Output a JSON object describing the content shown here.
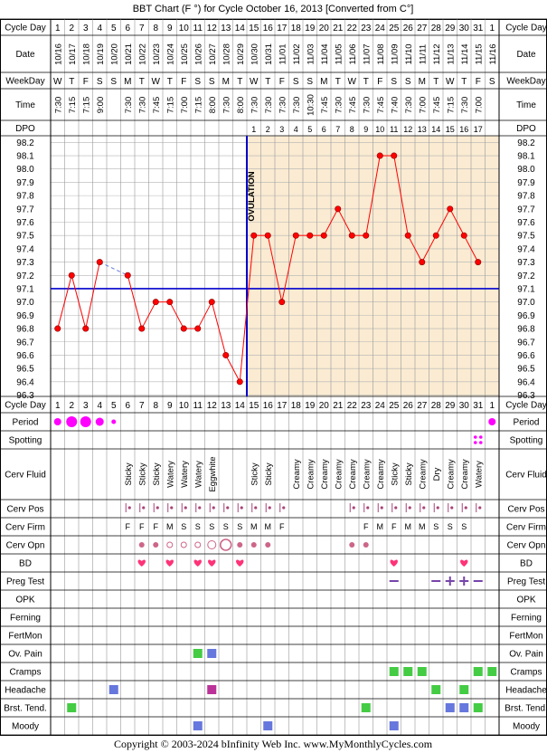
{
  "title": "BBT Chart (F °) for Cycle October 16, 2013  [Converted from C°]",
  "row_labels": {
    "cycle_day": "Cycle Day",
    "date": "Date",
    "weekday": "WeekDay",
    "time": "Time",
    "dpo": "DPO",
    "period": "Period",
    "spotting": "Spotting",
    "cerv_fluid": "Cerv Fluid",
    "cerv_pos": "Cerv Pos",
    "cerv_firm": "Cerv Firm",
    "cerv_opn": "Cerv Opn",
    "bd": "BD",
    "preg_test": "Preg Test",
    "opk": "OPK",
    "ferning": "Ferning",
    "fertmon": "FertMon",
    "ov_pain": "Ov. Pain",
    "cramps": "Cramps",
    "headache": "Headache",
    "brst_tend": "Brst. Tend.",
    "moody": "Moody"
  },
  "ovulation_label": "OVULATION",
  "footer": "Copyright © 2003-2024 bInfinity Web Inc.    www.MyMonthlyCycles.com",
  "colors": {
    "post_ovulation_bg": "#faebd2",
    "temp_line": "#ff0000",
    "coverline": "#0000cc",
    "period": "#ff00ff",
    "symptom_green": "#44cc44",
    "symptom_blue": "#6677dd",
    "headache_purple": "#bb3399",
    "heart": "#ff3377",
    "preg_neg": "#7744aa",
    "cerv_dot": "#cc6688"
  },
  "cycle_days": [
    "1",
    "2",
    "3",
    "4",
    "5",
    "6",
    "7",
    "8",
    "9",
    "10",
    "11",
    "12",
    "13",
    "14",
    "15",
    "16",
    "17",
    "18",
    "19",
    "20",
    "21",
    "22",
    "23",
    "24",
    "25",
    "26",
    "27",
    "28",
    "29",
    "30",
    "31",
    "1"
  ],
  "dates": [
    "10/16",
    "10/17",
    "10/18",
    "10/19",
    "10/20",
    "10/21",
    "10/22",
    "10/23",
    "10/24",
    "10/25",
    "10/26",
    "10/27",
    "10/28",
    "10/29",
    "10/30",
    "10/31",
    "11/01",
    "11/02",
    "11/03",
    "11/04",
    "11/05",
    "11/06",
    "11/07",
    "11/08",
    "11/09",
    "11/10",
    "11/11",
    "11/12",
    "11/13",
    "11/14",
    "11/15",
    "11/16"
  ],
  "weekdays": [
    "W",
    "T",
    "F",
    "S",
    "S",
    "M",
    "T",
    "W",
    "T",
    "F",
    "S",
    "S",
    "M",
    "T",
    "W",
    "T",
    "F",
    "S",
    "S",
    "M",
    "T",
    "W",
    "T",
    "F",
    "S",
    "S",
    "M",
    "T",
    "W",
    "T",
    "F",
    "S"
  ],
  "times": [
    "7:30",
    "7:15",
    "7:15",
    "9:00",
    "",
    "7:30",
    "7:30",
    "7:45",
    "7:15",
    "7:00",
    "7:15",
    "8:00",
    "7:30",
    "8:00",
    "7:30",
    "7:30",
    "7:30",
    "7:30",
    "10:30",
    "7:45",
    "7:30",
    "7:45",
    "7:30",
    "7:45",
    "7:40",
    "7:30",
    "7:00",
    "7:45",
    "7:15",
    "7:30",
    "7:00",
    ""
  ],
  "dpo": [
    "",
    "",
    "",
    "",
    "",
    "",
    "",
    "",
    "",
    "",
    "",
    "",
    "",
    "",
    "1",
    "2",
    "3",
    "4",
    "5",
    "6",
    "7",
    "8",
    "9",
    "10",
    "11",
    "12",
    "13",
    "14",
    "15",
    "16",
    "17",
    ""
  ],
  "cerv_fluid": [
    "",
    "",
    "",
    "",
    "",
    "Sticky",
    "Sticky",
    "Sticky",
    "Watery",
    "Watery",
    "Watery",
    "Eggwhite",
    "",
    "",
    "Sticky",
    "Sticky",
    "",
    "Creamy",
    "Creamy",
    "Creamy",
    "Creamy",
    "Creamy",
    "Creamy",
    "Creamy",
    "Sticky",
    "Sticky",
    "Creamy",
    "Dry",
    "Creamy",
    "Creamy",
    "Watery",
    ""
  ],
  "cerv_firm": [
    "",
    "",
    "",
    "",
    "",
    "F",
    "F",
    "F",
    "M",
    "S",
    "S",
    "S",
    "S",
    "S",
    "M",
    "M",
    "F",
    "",
    "",
    "",
    "",
    "",
    "F",
    "M",
    "F",
    "M",
    "M",
    "S",
    "S",
    "S",
    "",
    ""
  ],
  "cerv_pos": [
    0,
    0,
    0,
    0,
    0,
    1,
    1,
    1,
    1,
    1,
    1,
    1,
    1,
    1,
    1,
    1,
    1,
    0,
    0,
    0,
    0,
    1,
    1,
    1,
    1,
    1,
    1,
    1,
    1,
    1,
    1,
    0
  ],
  "cerv_opn": [
    "",
    "",
    "",
    "",
    "",
    "",
    "s",
    "s",
    "o",
    "o",
    "o",
    "l",
    "L",
    "s",
    "s",
    "s",
    "",
    "",
    "",
    "",
    "",
    "s",
    "s",
    "",
    "",
    "",
    "",
    "",
    "",
    "",
    "",
    ""
  ],
  "bd": [
    7,
    9,
    11,
    12,
    14,
    25,
    30
  ],
  "preg_test": {
    "neg": [
      25,
      28,
      31
    ],
    "pos": [
      29,
      30
    ]
  },
  "period": {
    "dots": [
      [
        1,
        "s"
      ],
      [
        2,
        "l"
      ],
      [
        3,
        "l"
      ],
      [
        4,
        "m"
      ],
      [
        5,
        "t"
      ],
      [
        32,
        "s"
      ]
    ]
  },
  "spotting": [
    31
  ],
  "ov_pain": [
    [
      11,
      "green"
    ],
    [
      12,
      "blue"
    ]
  ],
  "cramps": [
    25,
    26,
    27,
    31,
    32
  ],
  "headache": [
    [
      5,
      "blue"
    ],
    [
      12,
      "purple"
    ],
    [
      28,
      "green"
    ],
    [
      30,
      "green"
    ]
  ],
  "brst_tend": [
    [
      2,
      "green"
    ],
    [
      23,
      "green"
    ],
    [
      29,
      "blue"
    ],
    [
      30,
      "blue"
    ],
    [
      31,
      "green"
    ]
  ],
  "moody": [
    11,
    16,
    25
  ],
  "chart_data": {
    "type": "line",
    "title": "BBT Chart (F °) for Cycle October 16, 2013  [Converted from C°]",
    "xlabel": "Cycle Day",
    "ylabel": "",
    "ylim": [
      96.3,
      98.2
    ],
    "yticks": [
      "98.2",
      "98.1",
      "98.0",
      "97.9",
      "97.8",
      "97.7",
      "97.6",
      "97.5",
      "97.4",
      "97.3",
      "97.2",
      "97.1",
      "97.0",
      "96.9",
      "96.8",
      "96.7",
      "96.6",
      "96.5",
      "96.4",
      "96.3"
    ],
    "x": [
      1,
      2,
      3,
      4,
      5,
      6,
      7,
      8,
      9,
      10,
      11,
      12,
      13,
      14,
      15,
      16,
      17,
      18,
      19,
      20,
      21,
      22,
      23,
      24,
      25,
      26,
      27,
      28,
      29,
      30,
      31,
      32
    ],
    "temps": [
      96.8,
      97.2,
      96.8,
      97.3,
      null,
      97.2,
      96.8,
      97.0,
      97.0,
      96.8,
      96.8,
      97.0,
      96.6,
      96.4,
      97.5,
      97.5,
      97.0,
      97.5,
      97.5,
      97.5,
      97.7,
      97.5,
      97.5,
      98.1,
      98.1,
      97.5,
      97.3,
      97.5,
      97.7,
      97.5,
      97.3,
      null
    ],
    "coverline": 97.1,
    "ovulation_day": 14,
    "grid": true
  }
}
